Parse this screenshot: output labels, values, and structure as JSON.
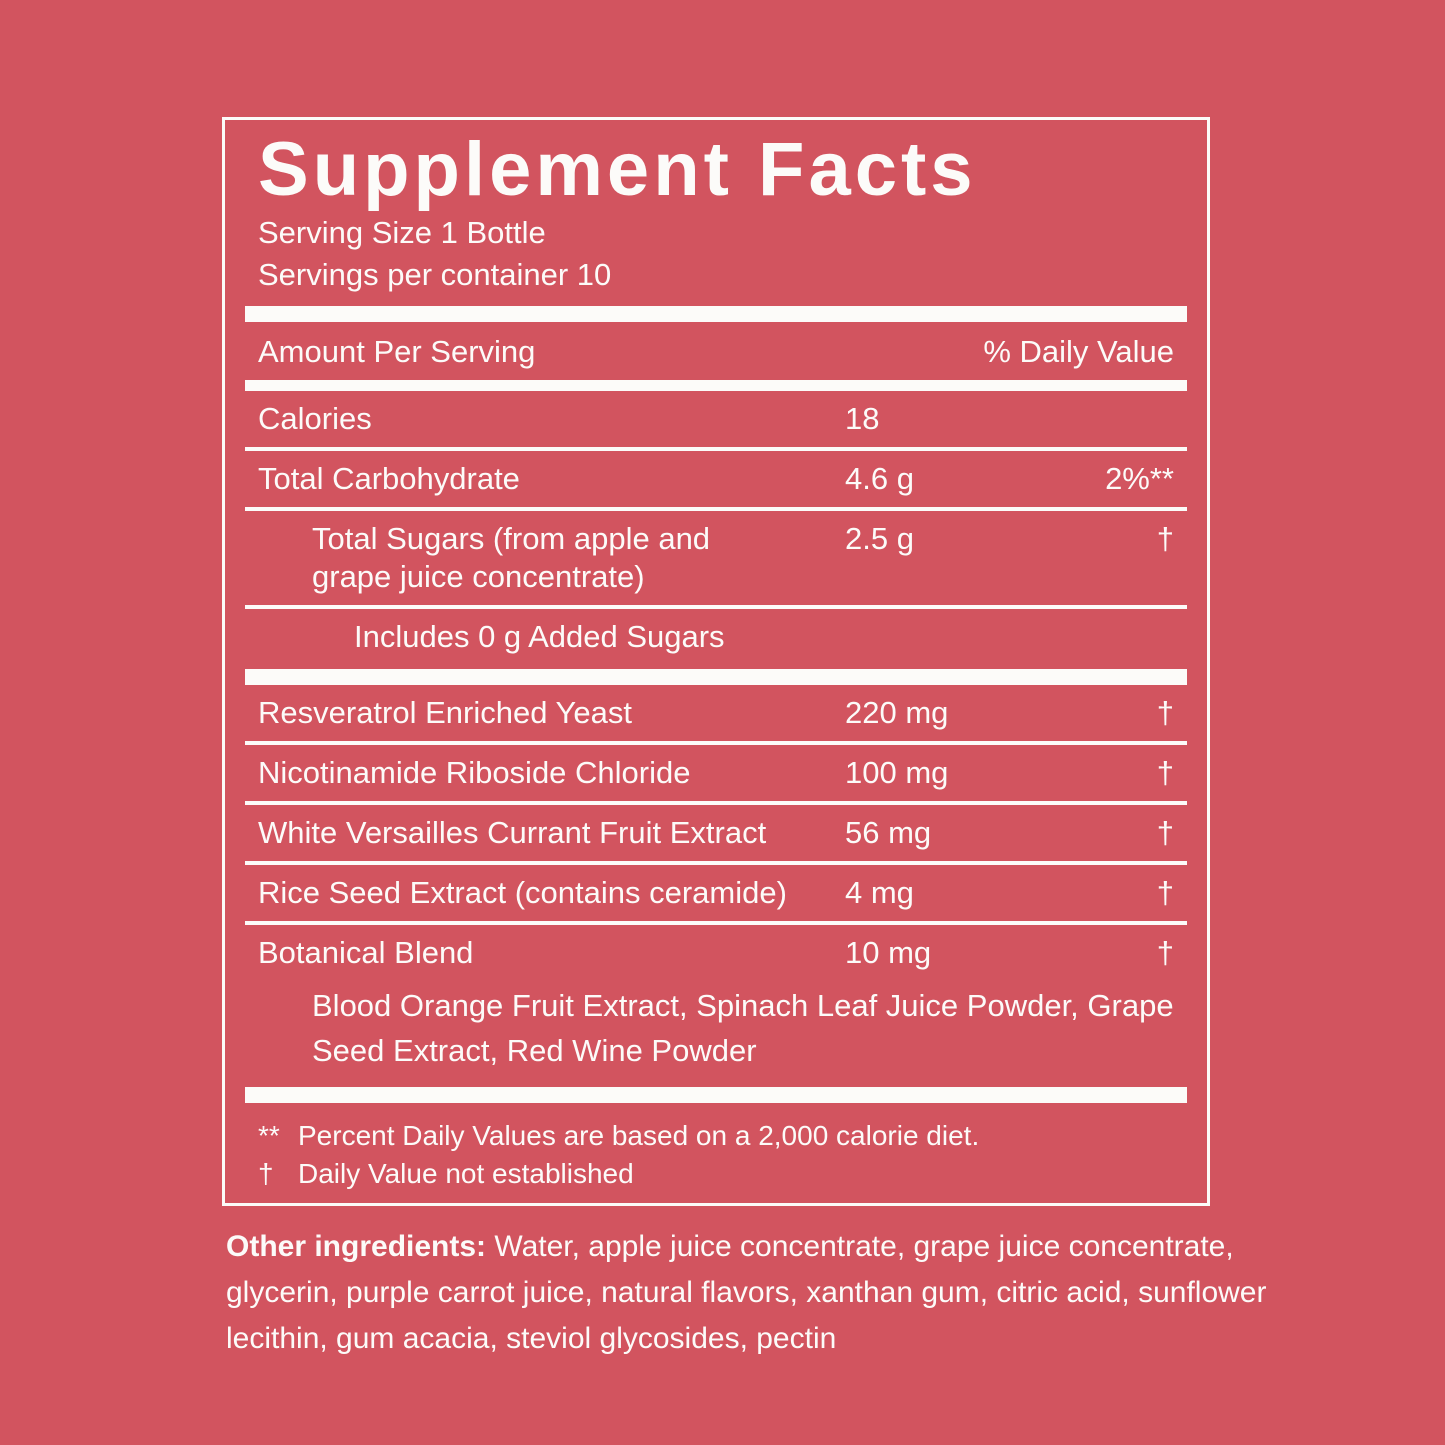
{
  "colors": {
    "background": "#D2545F",
    "text": "#FCFBF9"
  },
  "panel": {
    "title": "Supplement Facts",
    "serving_size": "Serving Size 1 Bottle",
    "servings_per_container": "Servings per container 10",
    "columns": {
      "amount": "Amount Per Serving",
      "daily_value": "% Daily Value"
    },
    "rows": [
      {
        "name": "Calories",
        "amount": "18",
        "dv": ""
      },
      {
        "name": "Total Carbohydrate",
        "amount": "4.6 g",
        "dv": "2%**"
      },
      {
        "name": "Total Sugars (from apple and grape juice concentrate)",
        "amount": "2.5 g",
        "dv": "†"
      },
      {
        "name": "Includes 0 g Added Sugars",
        "amount": "",
        "dv": ""
      },
      {
        "name": "Resveratrol Enriched Yeast",
        "amount": "220 mg",
        "dv": "†"
      },
      {
        "name": "Nicotinamide Riboside Chloride",
        "amount": "100 mg",
        "dv": "†"
      },
      {
        "name": "White Versailles Currant Fruit Extract",
        "amount": "56 mg",
        "dv": "†"
      },
      {
        "name": "Rice Seed Extract (contains ceramide)",
        "amount": "4 mg",
        "dv": "†"
      },
      {
        "name": "Botanical Blend",
        "amount": "10 mg",
        "dv": "†"
      }
    ],
    "botanical_blend_components": "Blood Orange Fruit Extract, Spinach Leaf Juice Powder, Grape Seed Extract, Red Wine Powder",
    "footnotes": [
      {
        "symbol": "**",
        "text": "Percent Daily Values are based on a 2,000 calorie diet."
      },
      {
        "symbol": "†",
        "text": "Daily Value not established"
      }
    ]
  },
  "other_ingredients": {
    "label": "Other ingredients:",
    "text": "Water, apple juice concentrate, grape juice concentrate, glycerin, purple carrot juice, natural flavors, xanthan gum, citric acid, sunflower lecithin, gum acacia, steviol glycosides, pectin"
  }
}
